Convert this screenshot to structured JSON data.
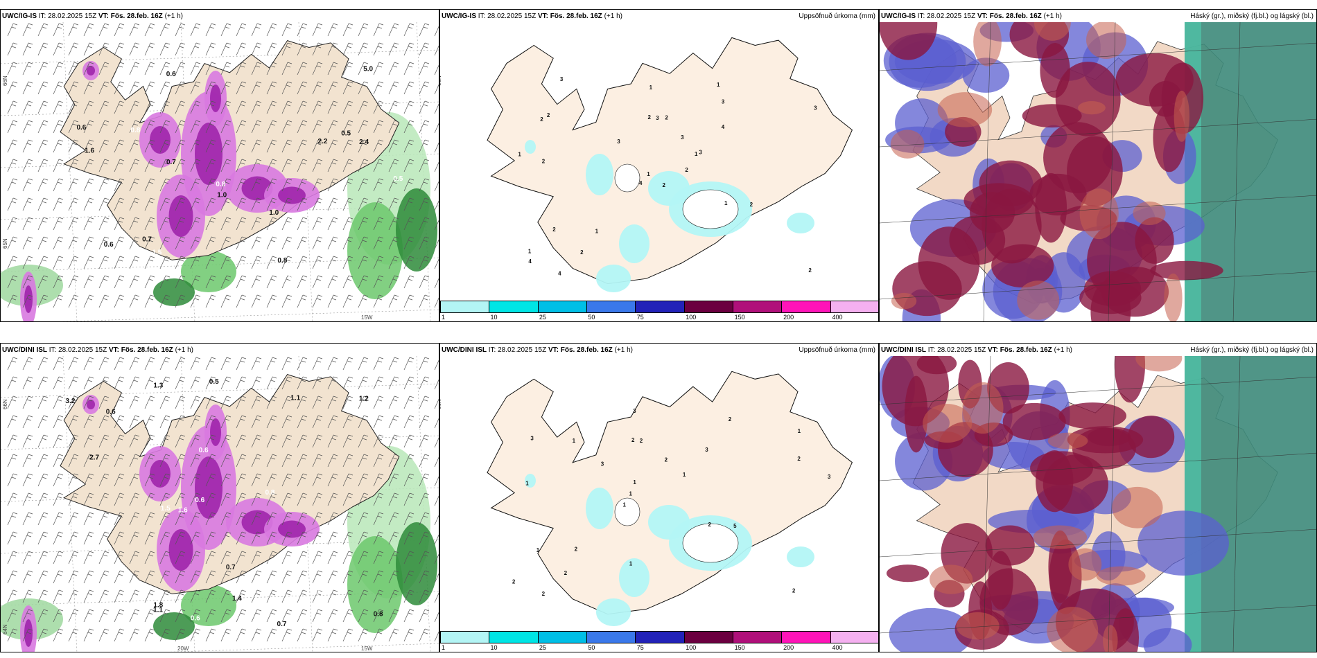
{
  "panels": [
    {
      "model": "UWC/IG-IS",
      "it": "IT: 28.02.2025 15Z",
      "vt": "VT: Fös. 28.feb. 16Z",
      "lead": "(+1 h)",
      "right": ""
    },
    {
      "model": "UWC/IG-IS",
      "it": "IT: 28.02.2025 15Z",
      "vt": "VT: Fös. 28.feb. 16Z",
      "lead": "(+1 h)",
      "right": "Uppsöfnuð úrkoma (mm)"
    },
    {
      "model": "UWC/IG-IS",
      "it": "IT: 28.02.2025 15Z",
      "vt": "VT: Fös. 28.feb. 16Z",
      "lead": "(+1 h)",
      "right": "Háský (gr.), miðský (fj.bl.) og lágský (bl.)"
    },
    {
      "model": "UWC/DINI ISL",
      "it": "IT: 28.02.2025 15Z",
      "vt": "VT: Fös. 28.feb. 16Z",
      "lead": "(+1 h)",
      "right": ""
    },
    {
      "model": "UWC/DINI ISL",
      "it": "IT: 28.02.2025 15Z",
      "vt": "VT: Fös. 28.feb. 16Z",
      "lead": "(+1 h)",
      "right": "Uppsöfnuð úrkoma (mm)"
    },
    {
      "model": "UWC/DINI ISL",
      "it": "IT: 28.02.2025 15Z",
      "vt": "VT: Fös. 28.feb. 16Z",
      "lead": "(+1 h)",
      "right": "Háský (gr.), miðský (fj.bl.) og lágský (bl.)"
    }
  ],
  "legend": {
    "ticks": [
      "1",
      "10",
      "25",
      "50",
      "75",
      "100",
      "150",
      "200",
      "400"
    ],
    "colors": [
      "#b3f5f5",
      "#00e5e5",
      "#00bfe6",
      "#3a78ea",
      "#2222b8",
      "#6b0040",
      "#b0107a",
      "#ff14b8",
      "#f5b0f0"
    ]
  },
  "axis_labels": {
    "lat66": "66N",
    "lat65": "65N",
    "lat64": "64N",
    "lon20": "20W",
    "lon15": "15W"
  },
  "precip_labels_top": [
    "2",
    "2",
    "1",
    "1",
    "1",
    "1",
    "1",
    "2",
    "3",
    "2",
    "3",
    "2",
    "2",
    "3",
    "4",
    "4",
    "4",
    "2",
    "3",
    "2",
    "3",
    "4",
    "2",
    "3",
    "3",
    "2",
    "2",
    "1",
    "1",
    "1"
  ],
  "precip_labels_bottom": [
    "2",
    "1",
    "1",
    "1",
    "3",
    "2",
    "2",
    "2",
    "1",
    "3",
    "2",
    "2",
    "2",
    "1",
    "5",
    "3",
    "3",
    "3",
    "2",
    "2",
    "1",
    "1",
    "1",
    "1",
    "2",
    "2"
  ],
  "rain_labels_top": [
    "0.6",
    "0.6",
    "0.7",
    "0.8",
    "0.5",
    "0.8",
    "0.5",
    "0.7",
    "1.0",
    "1.5",
    "0.6",
    "0.6",
    "0.8",
    "1.0",
    "2.2",
    "3.3",
    "1.6",
    "5.0",
    "1.3",
    "2.4"
  ],
  "rain_labels_bottom": [
    "0.6",
    "0.7",
    "1.8",
    "1.1",
    "1.3",
    "0.6",
    "1.5",
    "0.8",
    "0.5",
    "0.6",
    "1.2",
    "1.4",
    "0.6",
    "0.7",
    "1.1",
    "0.8",
    "2.7",
    "1.1",
    "1.6",
    "3.2"
  ]
}
